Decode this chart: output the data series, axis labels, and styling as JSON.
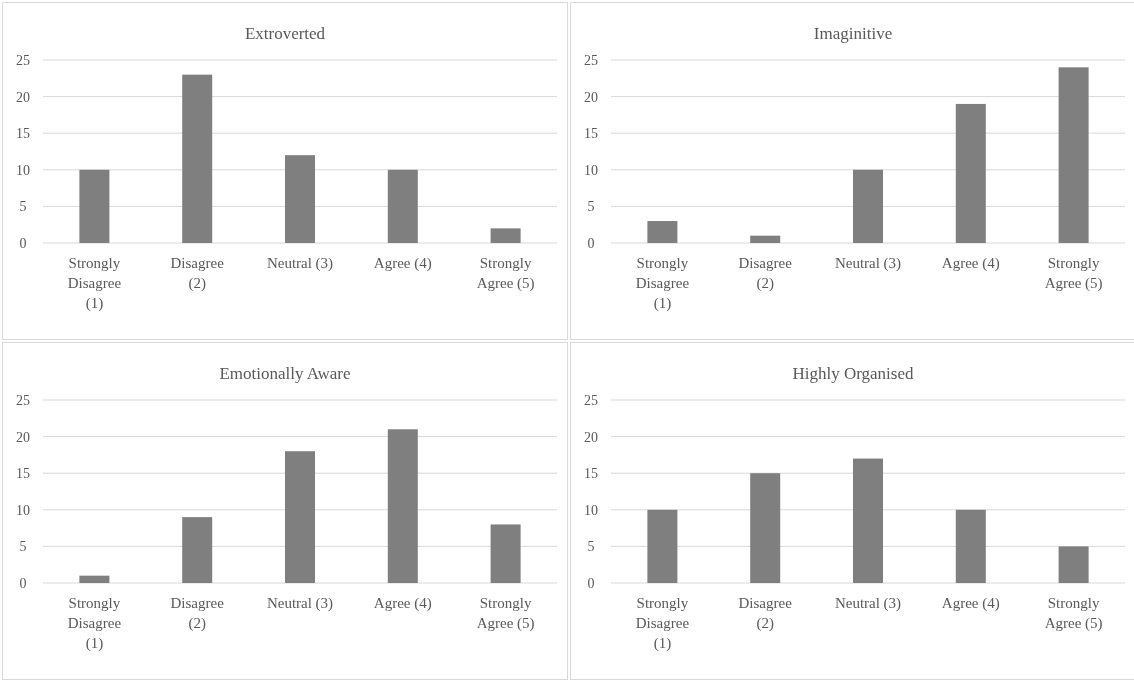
{
  "chart_data": [
    {
      "type": "bar",
      "title": "Extroverted",
      "categories": [
        "Strongly Disagree (1)",
        "Disagree (2)",
        "Neutral (3)",
        "Agree (4)",
        "Strongly Agree (5)"
      ],
      "values": [
        10,
        23,
        12,
        10,
        2
      ],
      "color": "#7f7f7f",
      "ylim": [
        0,
        25
      ],
      "yticks": [
        0,
        5,
        10,
        15,
        20,
        25
      ],
      "grid": "y"
    },
    {
      "type": "bar",
      "title": "Imaginitive",
      "categories": [
        "Strongly Disagree (1)",
        "Disagree (2)",
        "Neutral (3)",
        "Agree (4)",
        "Strongly Agree (5)"
      ],
      "values": [
        3,
        1,
        10,
        19,
        24
      ],
      "color": "#7f7f7f",
      "ylim": [
        0,
        25
      ],
      "yticks": [
        0,
        5,
        10,
        15,
        20,
        25
      ],
      "grid": "y"
    },
    {
      "type": "bar",
      "title": "Emotionally Aware",
      "categories": [
        "Strongly Disagree (1)",
        "Disagree (2)",
        "Neutral (3)",
        "Agree (4)",
        "Strongly Agree (5)"
      ],
      "values": [
        1,
        9,
        18,
        21,
        8
      ],
      "color": "#7f7f7f",
      "ylim": [
        0,
        25
      ],
      "yticks": [
        0,
        5,
        10,
        15,
        20,
        25
      ],
      "grid": "y"
    },
    {
      "type": "bar",
      "title": "Highly Organised",
      "categories": [
        "Strongly Disagree (1)",
        "Disagree (2)",
        "Neutral (3)",
        "Agree (4)",
        "Strongly Agree (5)"
      ],
      "values": [
        10,
        15,
        17,
        10,
        5
      ],
      "color": "#7f7f7f",
      "ylim": [
        0,
        25
      ],
      "yticks": [
        0,
        5,
        10,
        15,
        20,
        25
      ],
      "grid": "y"
    }
  ]
}
